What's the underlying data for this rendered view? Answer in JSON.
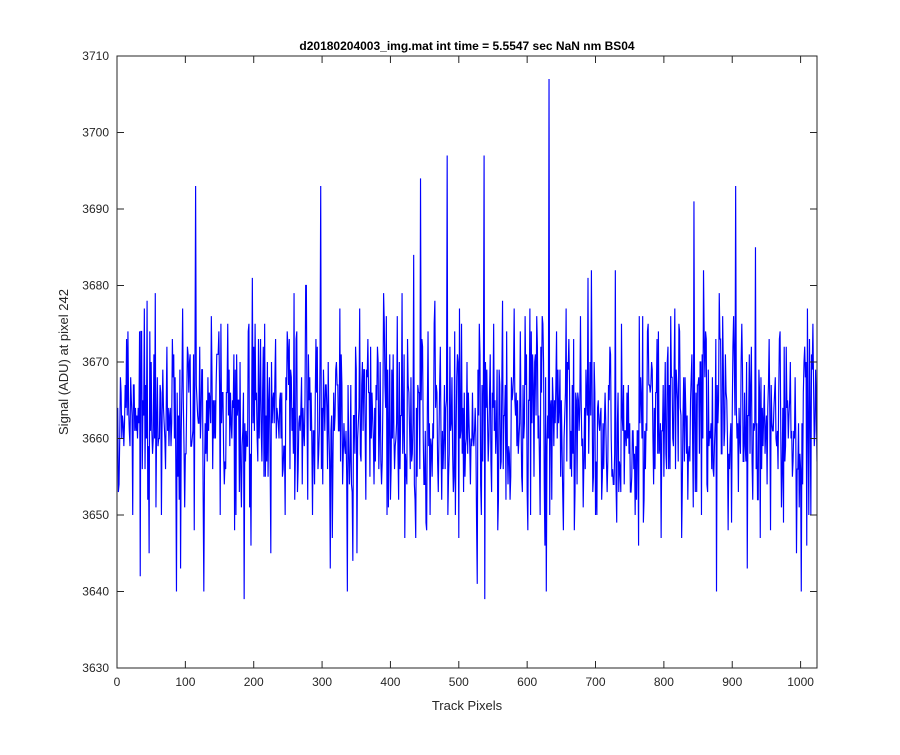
{
  "chart_data": {
    "type": "line",
    "title": "d20180204003_img.mat int time = 5.5547 sec  NaN nm BS04",
    "xlabel": "Track Pixels",
    "ylabel": "Signal (ADU) at pixel 242",
    "xlim": [
      0,
      1024
    ],
    "ylim": [
      3630,
      3710
    ],
    "x_ticks": [
      0,
      100,
      200,
      300,
      400,
      500,
      600,
      700,
      800,
      900,
      1000
    ],
    "y_ticks": [
      3630,
      3640,
      3650,
      3660,
      3670,
      3680,
      3690,
      3700,
      3710
    ],
    "grid": false,
    "legend": "none",
    "series": [
      {
        "color": "#0000ff",
        "x_start": 1,
        "x_step": 1,
        "stats": {
          "n_points": 1024,
          "mean_approx": 3663,
          "min_approx": 3639,
          "max_approx": 3707
        },
        "notable_points": [
          {
            "x": 34,
            "y": 3642
          },
          {
            "x": 87,
            "y": 3640
          },
          {
            "x": 115,
            "y": 3693
          },
          {
            "x": 127,
            "y": 3640
          },
          {
            "x": 186,
            "y": 3639
          },
          {
            "x": 298,
            "y": 3693
          },
          {
            "x": 337,
            "y": 3640
          },
          {
            "x": 444,
            "y": 3694
          },
          {
            "x": 483,
            "y": 3697
          },
          {
            "x": 527,
            "y": 3641
          },
          {
            "x": 537,
            "y": 3697
          },
          {
            "x": 538,
            "y": 3639
          },
          {
            "x": 632,
            "y": 3707
          },
          {
            "x": 628,
            "y": 3640
          },
          {
            "x": 844,
            "y": 3691
          },
          {
            "x": 877,
            "y": 3640
          },
          {
            "x": 905,
            "y": 3693
          },
          {
            "x": 1001,
            "y": 3640
          }
        ]
      }
    ],
    "box": true
  }
}
